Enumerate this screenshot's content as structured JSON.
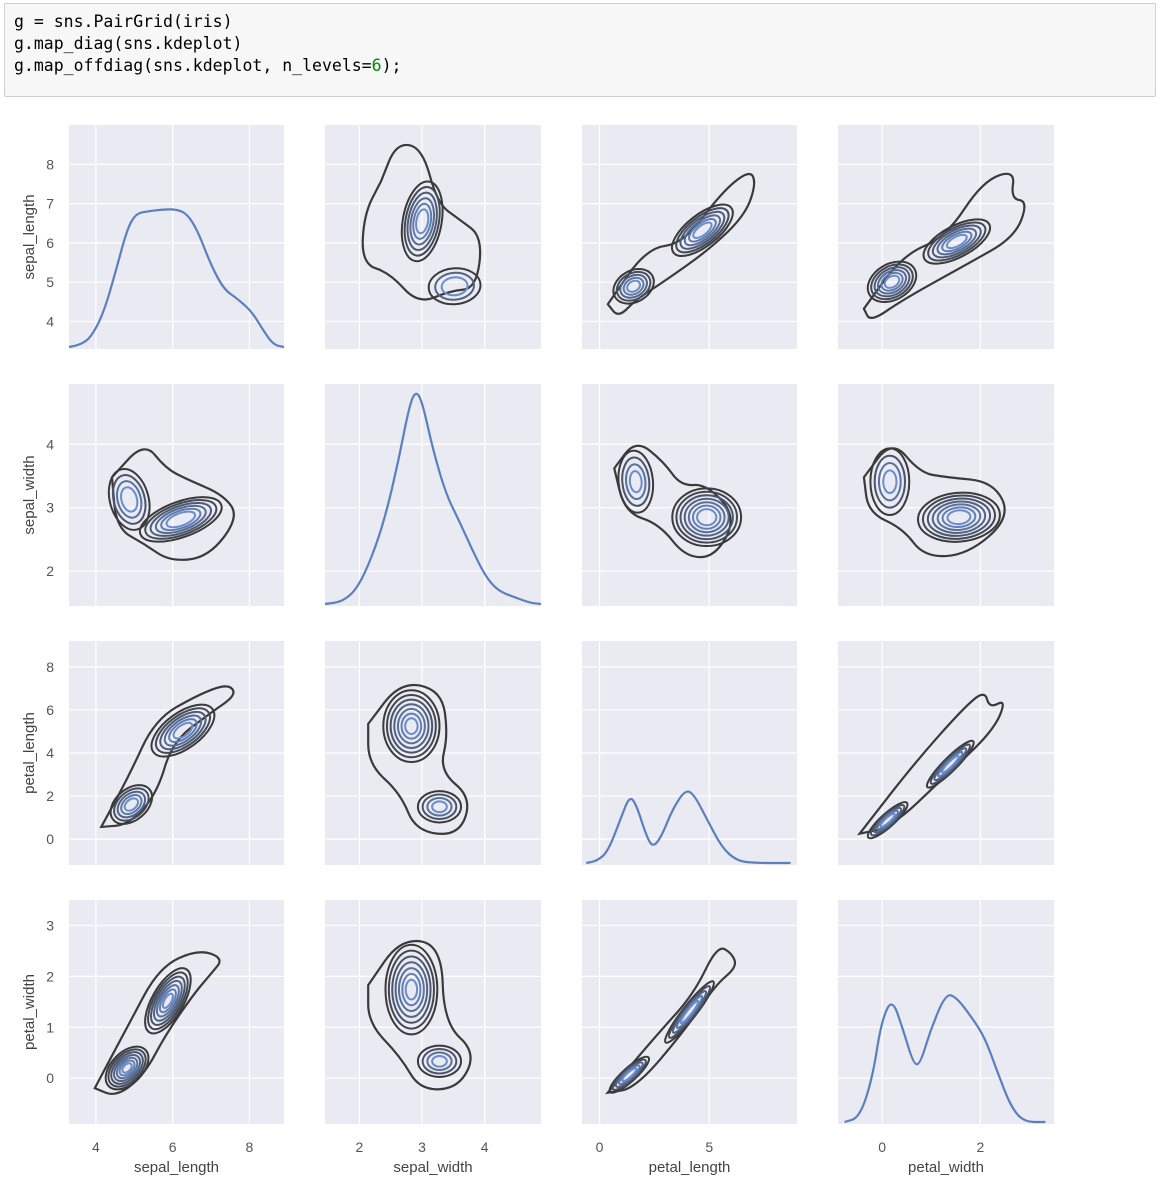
{
  "code_cell": {
    "lines": [
      {
        "pre": "g = sns.PairGrid(iris)",
        "num": "",
        "post": ""
      },
      {
        "pre": "g.map_diag(sns.kdeplot)",
        "num": "",
        "post": ""
      },
      {
        "pre": "g.map_offdiag(sns.kdeplot, n_levels=",
        "num": "6",
        "post": ");"
      }
    ]
  },
  "colors": {
    "panel_bg": "#eaeaf2",
    "grid": "#ffffff",
    "kde_line": "#5b7fbf",
    "contour_outer": "#3a3a3a",
    "contour_inner": "#6a8ccc",
    "number_literal": "#008800"
  },
  "chart_data": {
    "type": "pairgrid-kde",
    "title": "",
    "variables": [
      "sepal_length",
      "sepal_width",
      "petal_length",
      "petal_width"
    ],
    "x_axis": [
      {
        "label": "sepal_length",
        "ticks": [
          "4",
          "6",
          "8"
        ],
        "range": [
          3.3,
          8.9
        ]
      },
      {
        "label": "sepal_width",
        "ticks": [
          "2",
          "3",
          "4"
        ],
        "range": [
          1.45,
          4.9
        ]
      },
      {
        "label": "petal_length",
        "ticks": [
          "0",
          "5"
        ],
        "range": [
          -0.8,
          9.0
        ]
      },
      {
        "label": "petal_width",
        "ticks": [
          "0",
          "2"
        ],
        "range": [
          -0.9,
          3.5
        ]
      }
    ],
    "y_axis": [
      {
        "label": "sepal_length",
        "ticks": [
          "4",
          "5",
          "6",
          "7",
          "8"
        ],
        "range": [
          3.3,
          9.0
        ]
      },
      {
        "label": "sepal_width",
        "ticks": [
          "2",
          "3",
          "4"
        ],
        "range": [
          1.45,
          4.95
        ]
      },
      {
        "label": "petal_length",
        "ticks": [
          "0",
          "2",
          "4",
          "6",
          "8"
        ],
        "range": [
          -1.2,
          9.2
        ]
      },
      {
        "label": "petal_width",
        "ticks": [
          "0",
          "1",
          "2",
          "3"
        ],
        "range": [
          -0.9,
          3.5
        ]
      }
    ],
    "diagonal": "kdeplot (univariate density)",
    "offdiagonal": "kdeplot (bivariate contours, n_levels=6)",
    "diag_peaks": [
      {
        "variable": "sepal_length",
        "modes": [
          5.8
        ],
        "shape": "broad plateau 5.0-6.4"
      },
      {
        "variable": "sepal_width",
        "modes": [
          3.0
        ],
        "shape": "unimodal sharp peak"
      },
      {
        "variable": "petal_length",
        "modes": [
          1.5,
          4.8
        ],
        "shape": "bimodal, right mode higher"
      },
      {
        "variable": "petal_width",
        "modes": [
          0.2,
          1.5
        ],
        "shape": "bimodal"
      }
    ],
    "grid": true,
    "legend": null
  }
}
